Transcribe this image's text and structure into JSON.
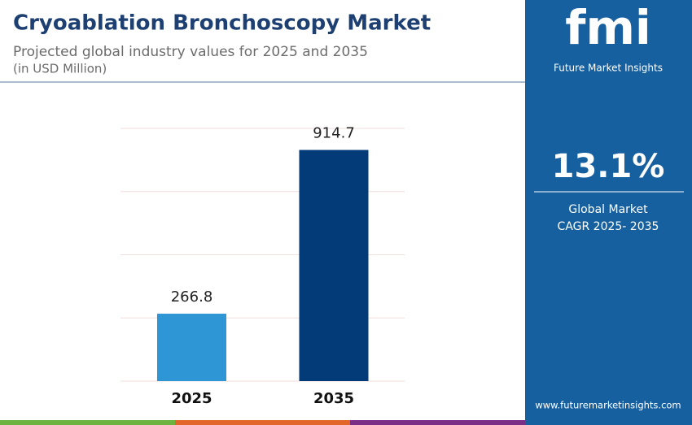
{
  "header": {
    "title": "Cryoablation Bronchoscopy Market",
    "subtitle": "Projected global industry values for 2025 and 2035",
    "unit": "(in USD Million)"
  },
  "chart_data": {
    "type": "bar",
    "categories": [
      "2025",
      "2035"
    ],
    "values": [
      266.8,
      914.7
    ],
    "colors": [
      "#2f96d6",
      "#033a78"
    ],
    "ylim": [
      0,
      1000
    ],
    "yticks": [
      0,
      250,
      500,
      750,
      1000
    ],
    "grid": true
  },
  "sidebar": {
    "logo": "fmi",
    "brand": "Future Market Insights",
    "cagr": "13.1%",
    "cagr_label_1": "Global Market",
    "cagr_label_2": "CAGR 2025- 2035",
    "website": "www.futuremarketinsights.com"
  }
}
